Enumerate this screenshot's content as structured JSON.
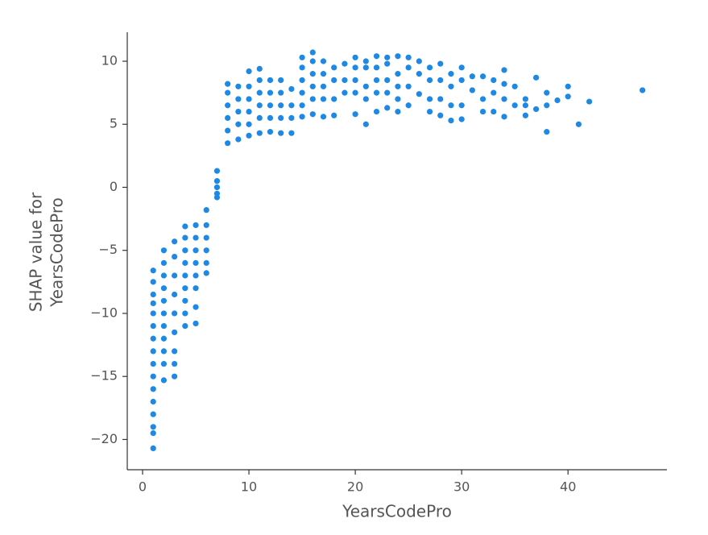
{
  "chart_data": {
    "type": "scatter",
    "x_label": "YearsCodePro",
    "y_label": [
      "SHAP value for",
      "YearsCodePro"
    ],
    "color": "#1e88e5",
    "xlim": [
      -1.44,
      49.3
    ],
    "ylim": [
      -22.4,
      12.3
    ],
    "xticks": [
      0,
      10,
      20,
      30,
      40
    ],
    "yticks": [
      {
        "value": -20,
        "label": "−20"
      },
      {
        "value": -15,
        "label": "−15"
      },
      {
        "value": -10,
        "label": "−10"
      },
      {
        "value": -5,
        "label": "−5"
      },
      0,
      5,
      10
    ],
    "x": [
      1,
      1,
      1,
      1,
      1,
      1,
      1,
      1,
      1,
      1,
      1,
      1,
      1,
      1,
      1,
      1,
      2,
      2,
      2,
      2,
      2,
      2,
      2,
      2,
      2,
      2,
      2,
      3,
      3,
      3,
      3,
      3,
      3,
      3,
      3,
      3,
      4,
      4,
      4,
      4,
      4,
      4,
      4,
      4,
      4,
      5,
      5,
      5,
      5,
      5,
      5,
      5,
      5,
      6,
      6,
      6,
      6,
      6,
      6,
      7,
      7,
      7,
      7,
      7,
      8,
      8,
      8,
      8,
      8,
      8,
      9,
      9,
      9,
      9,
      9,
      10,
      10,
      10,
      10,
      10,
      10,
      11,
      11,
      11,
      11,
      11,
      11,
      12,
      12,
      12,
      12,
      12,
      13,
      13,
      13,
      13,
      13,
      14,
      14,
      14,
      14,
      15,
      15,
      15,
      15,
      15,
      15,
      16,
      16,
      16,
      16,
      16,
      16,
      17,
      17,
      17,
      17,
      17,
      18,
      18,
      18,
      18,
      19,
      19,
      19,
      20,
      20,
      20,
      20,
      20,
      21,
      21,
      21,
      21,
      21,
      22,
      22,
      22,
      22,
      22,
      23,
      23,
      23,
      23,
      23,
      24,
      24,
      24,
      24,
      24,
      25,
      25,
      25,
      25,
      26,
      26,
      26,
      27,
      27,
      27,
      27,
      28,
      28,
      28,
      28,
      29,
      29,
      29,
      29,
      30,
      30,
      30,
      30,
      31,
      31,
      32,
      32,
      32,
      33,
      33,
      33,
      34,
      34,
      34,
      34,
      35,
      35,
      36,
      36,
      36,
      37,
      37,
      38,
      38,
      38,
      39,
      40,
      40,
      41,
      42,
      47
    ],
    "y": [
      -6.6,
      -7.5,
      -8.5,
      -9.2,
      -10,
      -11,
      -12,
      -13,
      -14,
      -15,
      -16,
      -17,
      -18,
      -19,
      -19.5,
      -20.7,
      -5,
      -6,
      -7,
      -8,
      -9,
      -10,
      -11,
      -12,
      -13,
      -14,
      -15.3,
      -4.3,
      -5.5,
      -7,
      -8.5,
      -10,
      -11.5,
      -13,
      -14,
      -15,
      -3.1,
      -4,
      -5,
      -6,
      -7,
      -8,
      -9,
      -10,
      -11,
      -3,
      -4,
      -5,
      -6,
      -7,
      -8,
      -9.5,
      -10.8,
      -1.8,
      -3,
      -4,
      -5,
      -6,
      -6.8,
      1.3,
      0.5,
      0,
      -0.5,
      -0.8,
      3.5,
      4.5,
      5.5,
      6.5,
      7.5,
      8.2,
      3.8,
      5,
      6,
      7,
      8,
      4.1,
      5,
      6,
      7,
      8,
      9.2,
      4.3,
      5.5,
      6.5,
      7.5,
      8.5,
      9.4,
      4.4,
      5.5,
      6.5,
      7.5,
      8.5,
      4.3,
      5.5,
      6.5,
      7.5,
      8.5,
      4.3,
      5.5,
      6.5,
      7.8,
      5.6,
      6.5,
      7.5,
      8.5,
      9.5,
      10.3,
      5.8,
      7,
      8,
      9,
      10,
      10.7,
      5.6,
      7,
      8,
      9,
      10,
      5.7,
      7,
      8.5,
      9.5,
      7.5,
      8.5,
      9.8,
      5.8,
      7.5,
      8.5,
      9.5,
      10.3,
      5,
      7,
      8,
      9.5,
      10,
      6,
      7.5,
      8.5,
      9.5,
      10.4,
      6.3,
      7.5,
      8.5,
      9.8,
      10.3,
      6,
      7,
      8,
      9,
      10.4,
      6.5,
      8,
      9.5,
      10.3,
      7.4,
      9,
      10,
      6,
      7,
      8.5,
      9.5,
      5.7,
      7,
      8.5,
      9.8,
      5.3,
      6.5,
      8,
      9,
      5.4,
      6.5,
      8.5,
      9.5,
      7.7,
      8.8,
      6,
      7,
      8.8,
      6,
      7.5,
      8.5,
      5.6,
      7,
      8.2,
      9.3,
      6.5,
      8,
      5.7,
      6.5,
      7,
      6.2,
      8.7,
      4.4,
      6.5,
      7.5,
      6.9,
      7.2,
      8,
      5,
      6.8,
      7.7
    ]
  }
}
